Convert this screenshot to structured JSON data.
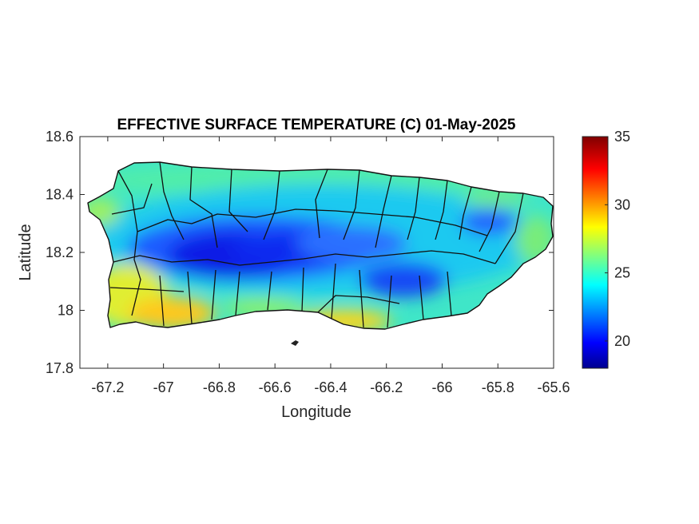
{
  "chart_data": {
    "type": "heatmap",
    "title": "EFFECTIVE SURFACE TEMPERATURE (C) 01-May-2025",
    "xlabel": "Longitude",
    "ylabel": "Latitude",
    "xlim": [
      -67.3,
      -65.6
    ],
    "ylim": [
      17.8,
      18.6
    ],
    "x_ticks": [
      -67.2,
      -67,
      -66.8,
      -66.6,
      -66.4,
      -66.2,
      -66,
      -65.8,
      -65.6
    ],
    "x_tick_labels": [
      "-67.2",
      "-67",
      "-66.8",
      "-66.6",
      "-66.4",
      "-66.2",
      "-66",
      "-65.8",
      "-65.6"
    ],
    "y_ticks": [
      17.8,
      18,
      18.2,
      18.4,
      18.6
    ],
    "y_tick_labels": [
      "17.8",
      "18",
      "18.2",
      "18.4",
      "18.6"
    ],
    "colorbar": {
      "colormap": "jet",
      "range": [
        18,
        35
      ],
      "ticks": [
        20,
        25,
        30,
        35
      ],
      "tick_labels": [
        "20",
        "25",
        "30",
        "35"
      ]
    },
    "region": "Puerto Rico",
    "cold_zones": [
      {
        "lon": -66.75,
        "lat": 18.18,
        "value": 19
      },
      {
        "lon": -66.55,
        "lat": 18.2,
        "value": 19.5
      },
      {
        "lon": -66.3,
        "lat": 18.2,
        "value": 20.5
      },
      {
        "lon": -66.1,
        "lat": 18.1,
        "value": 20
      },
      {
        "lon": -65.8,
        "lat": 18.28,
        "value": 20.5
      }
    ],
    "warm_zones": [
      {
        "lon": -67.15,
        "lat": 18.0,
        "value": 29
      },
      {
        "lon": -66.9,
        "lat": 17.99,
        "value": 29
      },
      {
        "lon": -66.4,
        "lat": 17.96,
        "value": 28.5
      },
      {
        "lon": -66.2,
        "lat": 17.97,
        "value": 28
      }
    ],
    "grid": false
  }
}
